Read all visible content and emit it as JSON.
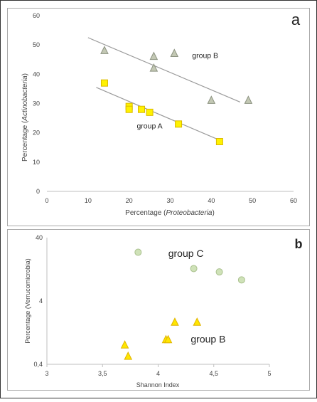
{
  "colors": {
    "square_fill": "#fff200",
    "square_stroke": "#d9b800",
    "triangle_fill": "#c3c8b4",
    "triangle_stroke": "#8c9280",
    "circle_fill": "#cfe2b8",
    "circle_stroke": "#a9c08d",
    "tri_b_fill": "#ffe600",
    "tri_b_stroke": "#e0b400",
    "trend": "#9a9a9a",
    "axis": "#bfbfbf",
    "text": "#444444",
    "border": "#333333"
  },
  "chart_data": [
    {
      "panel_label": "a",
      "type": "scatter",
      "title": "",
      "xlabel_prefix": "Percentage (",
      "xlabel_italic": "Proteobacteria",
      "xlabel_suffix": ")",
      "ylabel_prefix": "Percentage (",
      "ylabel_italic": "Actinobacteria",
      "ylabel_suffix": ")",
      "xlim": [
        0,
        60
      ],
      "ylim": [
        0,
        60
      ],
      "x_ticks": [
        0,
        10,
        20,
        30,
        40,
        50,
        60
      ],
      "y_ticks": [
        0,
        10,
        20,
        30,
        40,
        50,
        60
      ],
      "grid": false,
      "series": [
        {
          "name": "group A",
          "marker": "square",
          "points": [
            [
              14,
              37
            ],
            [
              20,
              29
            ],
            [
              20,
              28
            ],
            [
              23,
              28
            ],
            [
              25,
              27
            ],
            [
              32,
              23
            ],
            [
              42,
              17
            ]
          ],
          "trend": [
            [
              12,
              35.5
            ],
            [
              42,
              17.5
            ]
          ]
        },
        {
          "name": "group B",
          "marker": "triangle",
          "points": [
            [
              14,
              48
            ],
            [
              26,
              46
            ],
            [
              26,
              42
            ],
            [
              31,
              47
            ],
            [
              40,
              31
            ],
            [
              49,
              31
            ]
          ],
          "trend": [
            [
              10,
              52.5
            ],
            [
              47,
              30.5
            ]
          ]
        }
      ],
      "annotations": [
        {
          "text": "group A",
          "x": 25,
          "y": 21.5
        },
        {
          "text": "group B",
          "x": 38.5,
          "y": 45.5
        }
      ]
    },
    {
      "panel_label": "b",
      "type": "scatter",
      "title": "",
      "xlabel": "Shannon Index",
      "ylabel": "Percentage (Verrucomicrobia)",
      "xlim": [
        3,
        5
      ],
      "ylim": [
        0.4,
        40
      ],
      "y_scale": "log",
      "x_ticks": [
        "3",
        "3,5",
        "4",
        "4,5",
        "5"
      ],
      "x_tick_values": [
        3,
        3.5,
        4,
        4.5,
        5
      ],
      "y_ticks": [
        "0,4",
        "4",
        "40"
      ],
      "y_tick_values": [
        0.4,
        4,
        40
      ],
      "grid": false,
      "series": [
        {
          "name": "group C",
          "marker": "circle",
          "points": [
            [
              3.82,
              23.5
            ],
            [
              4.32,
              13
            ],
            [
              4.55,
              11.5
            ],
            [
              4.75,
              8.6
            ]
          ]
        },
        {
          "name": "group B",
          "marker": "triangle",
          "points": [
            [
              3.7,
              0.8
            ],
            [
              3.73,
              0.53
            ],
            [
              4.07,
              0.97
            ],
            [
              4.09,
              0.97
            ],
            [
              4.15,
              1.83
            ],
            [
              4.35,
              1.83
            ]
          ]
        }
      ],
      "annotations": [
        {
          "text": "group C",
          "x": 4.25,
          "y": 20
        },
        {
          "text": "group B",
          "x": 4.45,
          "y": 0.88
        }
      ]
    }
  ]
}
